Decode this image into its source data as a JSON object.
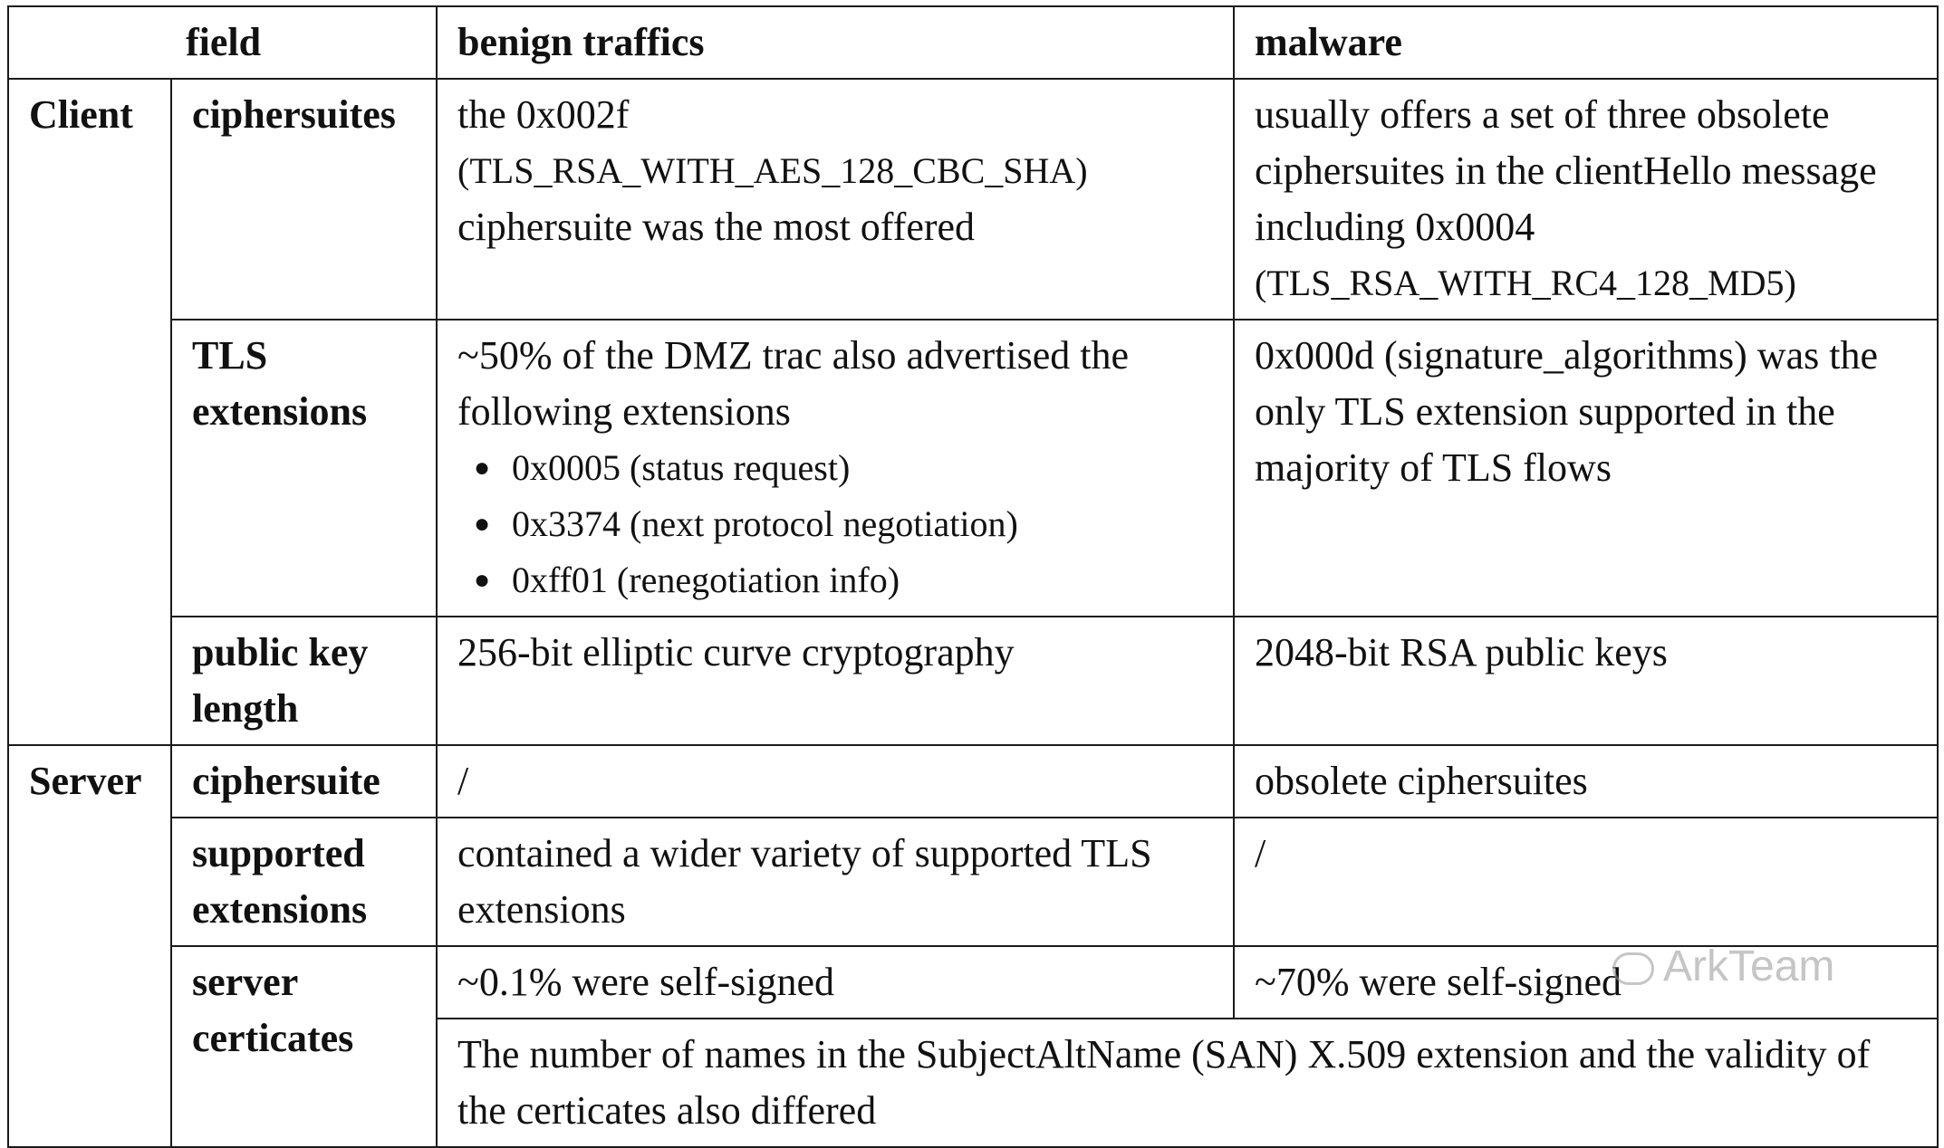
{
  "header": {
    "field": "field",
    "benign": "benign traffics",
    "malware": "malware"
  },
  "client": {
    "label": "Client",
    "ciphersuites": {
      "field": "ciphersuites",
      "benign_line1": "the 0x002f",
      "benign_line2": "(TLS_RSA_WITH_AES_128_CBC_SHA)",
      "benign_line3": "ciphersuite was the most offered",
      "malware_line1": "usually offers a set of three obsolete ciphersuites in the clientHello message including 0x0004",
      "malware_line2": "(TLS_RSA_WITH_RC4_128_MD5)"
    },
    "tls_extensions": {
      "field_line1": "TLS",
      "field_line2": "extensions",
      "benign_text": "~50% of the DMZ trac also advertised the following extensions",
      "benign_items": [
        "0x0005 (status request)",
        "0x3374 (next protocol negotiation)",
        "0xff01 (renegotiation info)"
      ],
      "malware": "0x000d (signature_algorithms) was the only TLS extension supported in the majority of TLS flows"
    },
    "public_key": {
      "field_line1": "public key",
      "field_line2": "length",
      "benign": "256-bit elliptic curve cryptography",
      "malware": "2048-bit RSA public keys"
    }
  },
  "server": {
    "label": "Server",
    "ciphersuite": {
      "field": "ciphersuite",
      "benign": "/",
      "malware": "obsolete ciphersuites"
    },
    "supported_extensions": {
      "field_line1": "supported",
      "field_line2": "extensions",
      "benign": "contained a wider variety of supported TLS extensions",
      "malware": "/"
    },
    "server_certificates": {
      "field_line1": "server",
      "field_line2": "certicates",
      "benign": "~0.1% were self-signed",
      "malware": "~70% were self-signed",
      "shared": "The number of names in the SubjectAltName (SAN) X.509 extension and the validity of the certicates also differed"
    }
  },
  "watermark": "ArkTeam",
  "icons": {
    "bullet": "bullet-icon",
    "watermark_logo": "wechat-logo-icon"
  }
}
